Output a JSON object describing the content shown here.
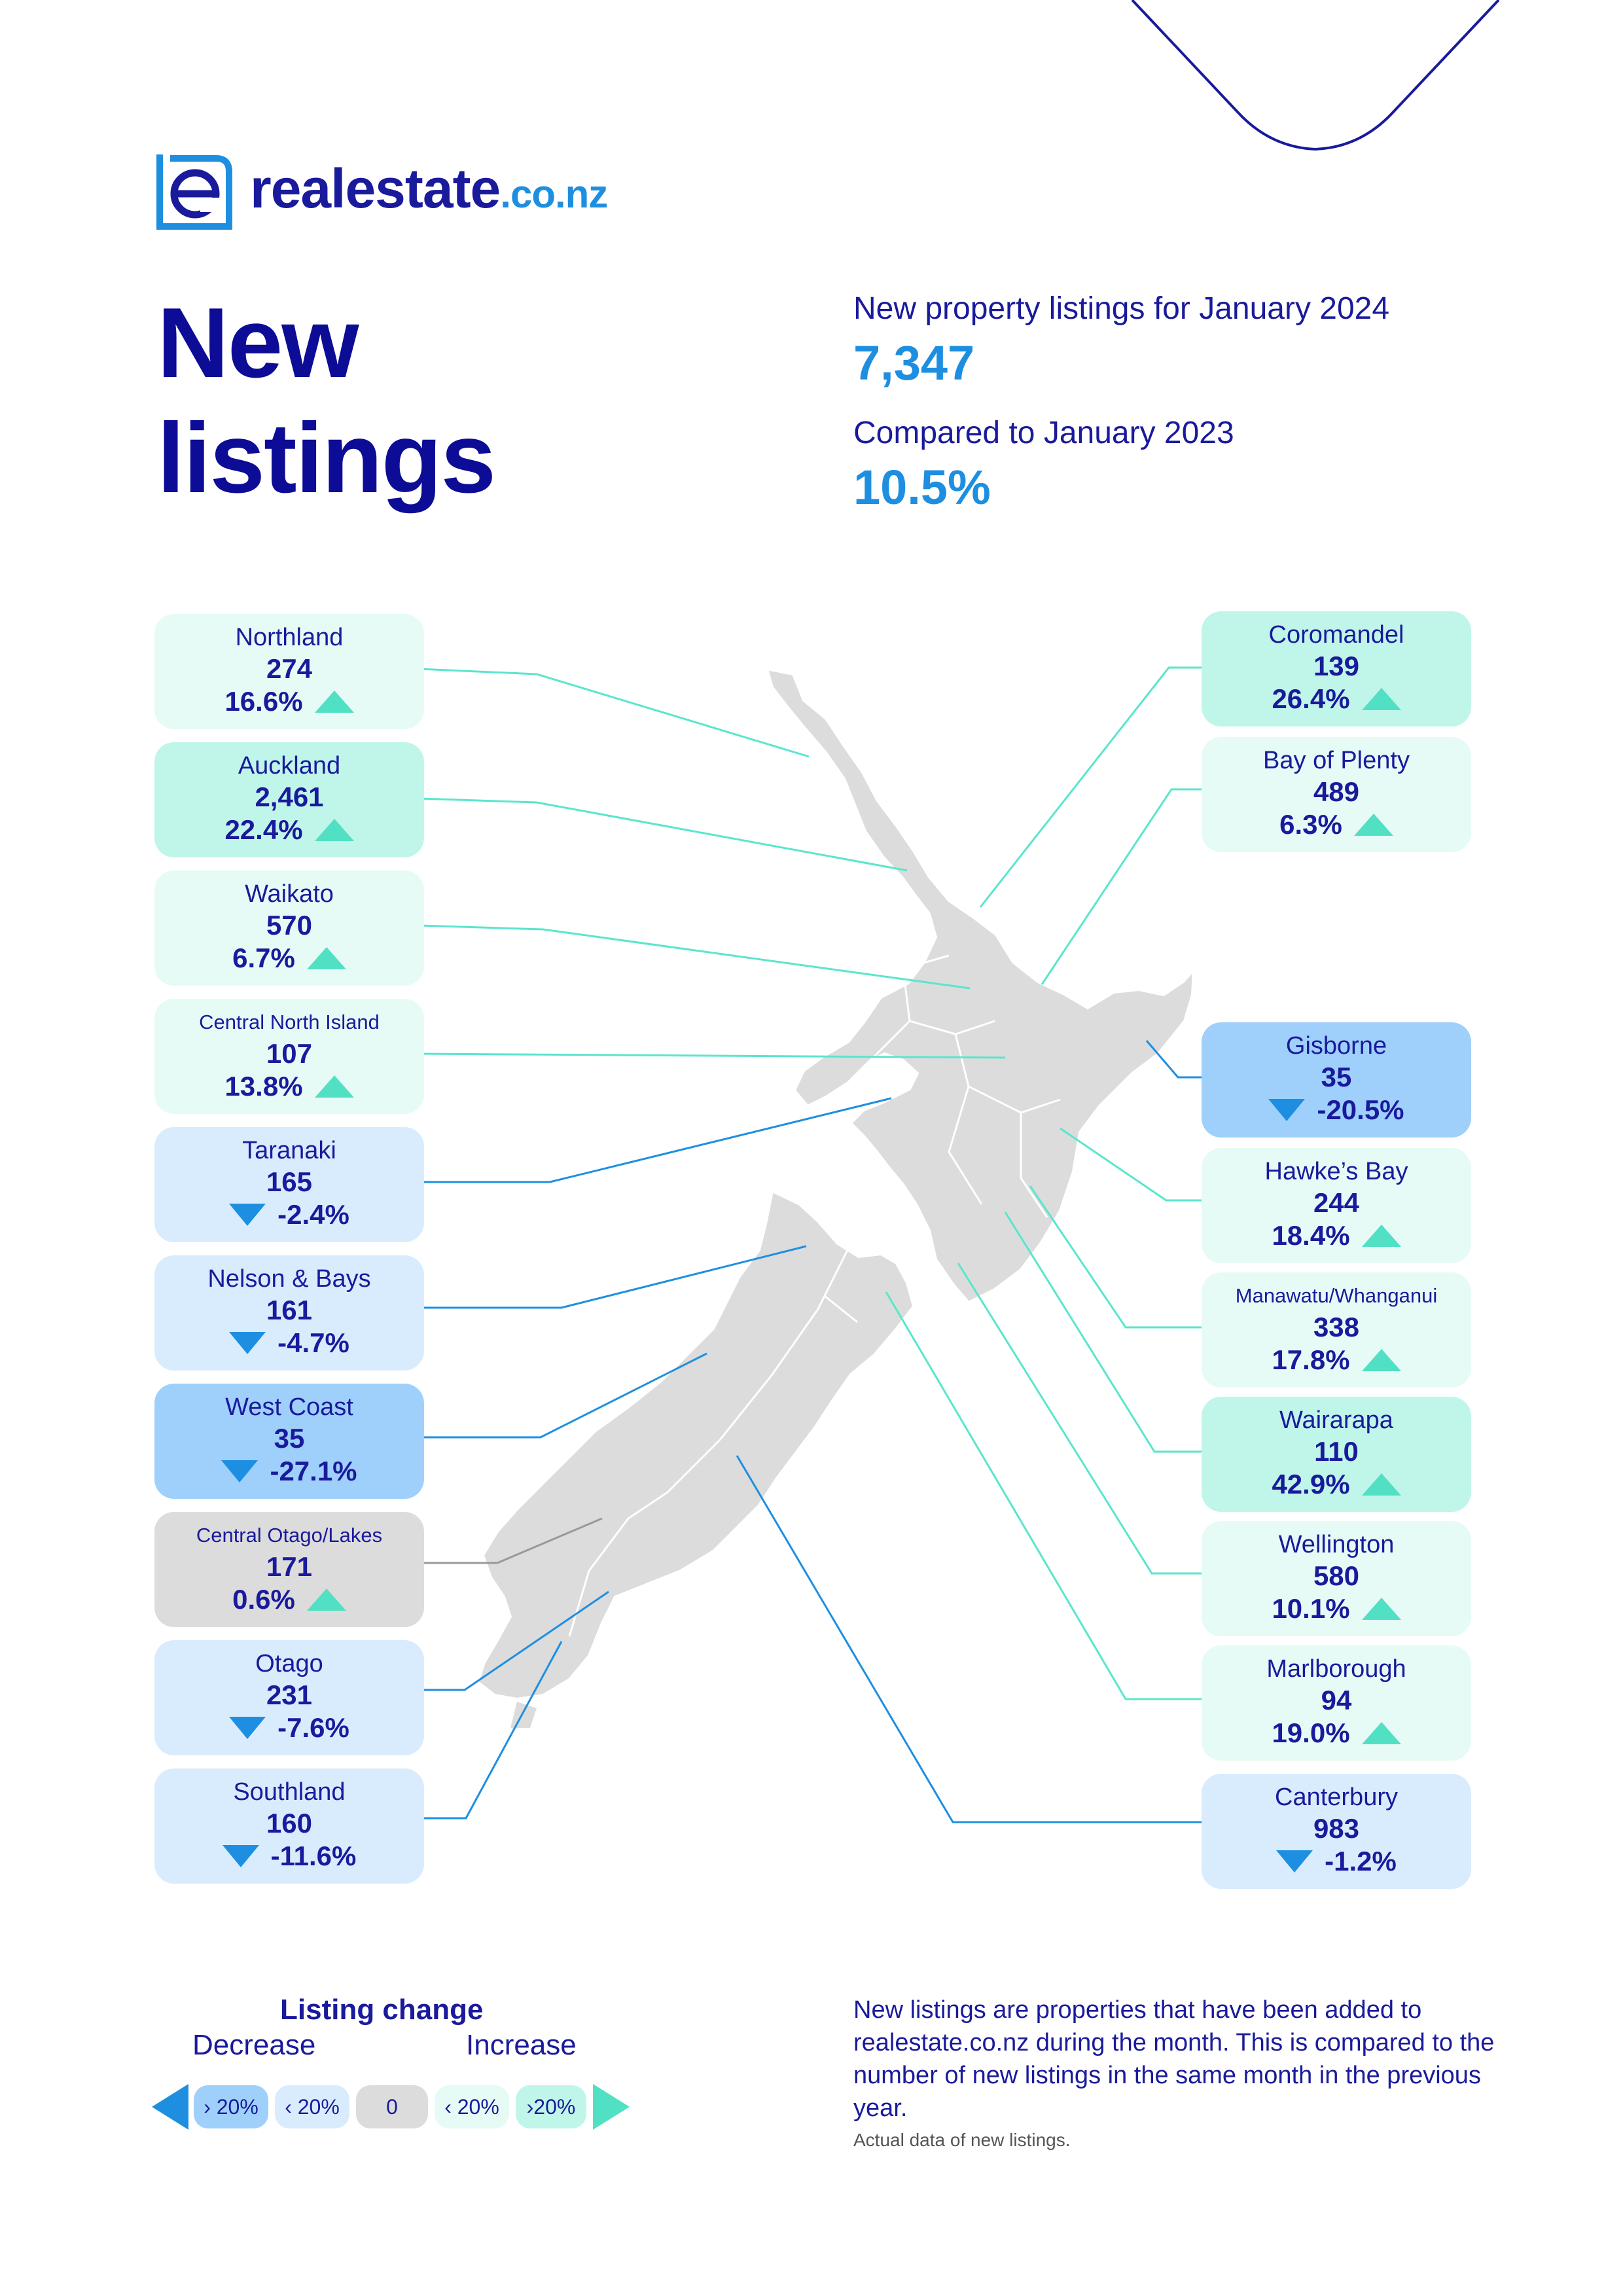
{
  "brand": {
    "name": "realestate",
    "tld": ".co.nz"
  },
  "title": {
    "line1": "New",
    "line2": "listings"
  },
  "summary": {
    "label1": "New property listings for January 2024",
    "value1": "7,347",
    "label2": "Compared to January 2023",
    "value2": "10.5%"
  },
  "regions": {
    "northland": {
      "name": "Northland",
      "count": "274",
      "change": "16.6%",
      "trend": "up"
    },
    "auckland": {
      "name": "Auckland",
      "count": "2,461",
      "change": "22.4%",
      "trend": "up"
    },
    "waikato": {
      "name": "Waikato",
      "count": "570",
      "change": "6.7%",
      "trend": "up"
    },
    "central_north_island": {
      "name": "Central North Island",
      "count": "107",
      "change": "13.8%",
      "trend": "up"
    },
    "taranaki": {
      "name": "Taranaki",
      "count": "165",
      "change": "-2.4%",
      "trend": "down"
    },
    "nelson_bays": {
      "name": "Nelson & Bays",
      "count": "161",
      "change": "-4.7%",
      "trend": "down"
    },
    "west_coast": {
      "name": "West Coast",
      "count": "35",
      "change": "-27.1%",
      "trend": "down"
    },
    "central_otago_lakes": {
      "name": "Central Otago/Lakes",
      "count": "171",
      "change": "0.6%",
      "trend": "up"
    },
    "otago": {
      "name": "Otago",
      "count": "231",
      "change": "-7.6%",
      "trend": "down"
    },
    "southland": {
      "name": "Southland",
      "count": "160",
      "change": "-11.6%",
      "trend": "down"
    },
    "coromandel": {
      "name": "Coromandel",
      "count": "139",
      "change": "26.4%",
      "trend": "up"
    },
    "bay_of_plenty": {
      "name": "Bay of Plenty",
      "count": "489",
      "change": "6.3%",
      "trend": "up"
    },
    "gisborne": {
      "name": "Gisborne",
      "count": "35",
      "change": "-20.5%",
      "trend": "down"
    },
    "hawkes_bay": {
      "name": "Hawke’s Bay",
      "count": "244",
      "change": "18.4%",
      "trend": "up"
    },
    "manawatu_whanganui": {
      "name": "Manawatu/Whanganui",
      "count": "338",
      "change": "17.8%",
      "trend": "up"
    },
    "wairarapa": {
      "name": "Wairarapa",
      "count": "110",
      "change": "42.9%",
      "trend": "up"
    },
    "wellington": {
      "name": "Wellington",
      "count": "580",
      "change": "10.1%",
      "trend": "up"
    },
    "marlborough": {
      "name": "Marlborough",
      "count": "94",
      "change": "19.0%",
      "trend": "up"
    },
    "canterbury": {
      "name": "Canterbury",
      "count": "983",
      "change": "-1.2%",
      "trend": "down"
    }
  },
  "legend": {
    "title": "Listing change",
    "decrease": "Decrease",
    "increase": "Increase",
    "chips": [
      "› 20%",
      "‹ 20%",
      "0",
      "‹ 20%",
      "›20%"
    ]
  },
  "note": "New listings are properties that have been added to realestate.co.nz during the month. This is compared to the number of new listings in the same month in the previous year.",
  "footnote": "Actual data of new listings.",
  "colors": {
    "navy": "#1a1a9c",
    "blue": "#1e8fe0",
    "teal": "#52e0c4",
    "increase_low": "#e6fbf6",
    "increase_high": "#bff6e9",
    "decrease_low": "#d9ecfd",
    "decrease_high": "#9ed0fb",
    "neutral": "#dcdcdc",
    "map": "#dcdcdc"
  }
}
